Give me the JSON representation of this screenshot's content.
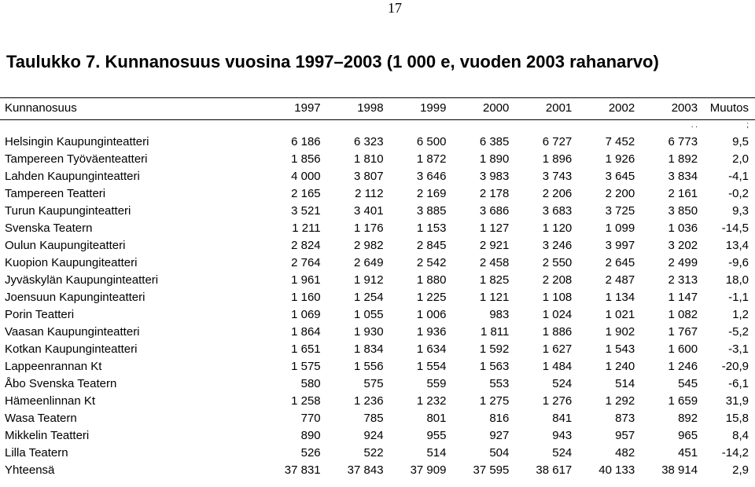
{
  "page_number": "17",
  "title": "Taulukko 7. Kunnanosuus vuosina 1997–2003 (1 000 e, vuoden 2003 rahanarvo)",
  "table": {
    "headers": [
      "Kunnanosuus",
      "1997",
      "1998",
      "1999",
      "2000",
      "2001",
      "2002",
      "2003",
      "Muutos"
    ],
    "dots_row": [
      "",
      "",
      "",
      "",
      "",
      "",
      "",
      ". .",
      ";"
    ],
    "rows": [
      [
        "Helsingin Kaupunginteatteri",
        "6 186",
        "6 323",
        "6 500",
        "6 385",
        "6 727",
        "7 452",
        "6 773",
        "9,5"
      ],
      [
        "Tampereen Työväenteatteri",
        "1 856",
        "1 810",
        "1 872",
        "1 890",
        "1 896",
        "1 926",
        "1 892",
        "2,0"
      ],
      [
        "Lahden Kaupunginteatteri",
        "4 000",
        "3 807",
        "3 646",
        "3 983",
        "3 743",
        "3 645",
        "3 834",
        "-4,1"
      ],
      [
        "Tampereen Teatteri",
        "2 165",
        "2 112",
        "2 169",
        "2 178",
        "2 206",
        "2 200",
        "2 161",
        "-0,2"
      ],
      [
        "Turun Kaupunginteatteri",
        "3 521",
        "3 401",
        "3 885",
        "3 686",
        "3 683",
        "3 725",
        "3 850",
        "9,3"
      ],
      [
        "Svenska Teatern",
        "1 211",
        "1 176",
        "1 153",
        "1 127",
        "1 120",
        "1 099",
        "1 036",
        "-14,5"
      ],
      [
        "Oulun Kaupungiteatteri",
        "2 824",
        "2 982",
        "2 845",
        "2 921",
        "3 246",
        "3 997",
        "3 202",
        "13,4"
      ],
      [
        "Kuopion Kaupungiteatteri",
        "2 764",
        "2 649",
        "2 542",
        "2 458",
        "2 550",
        "2 645",
        "2 499",
        "-9,6"
      ],
      [
        "Jyväskylän Kaupunginteatteri",
        "1 961",
        "1 912",
        "1 880",
        "1 825",
        "2 208",
        "2 487",
        "2 313",
        "18,0"
      ],
      [
        "Joensuun Kapunginteatteri",
        "1 160",
        "1 254",
        "1 225",
        "1 121",
        "1 108",
        "1 134",
        "1 147",
        "-1,1"
      ],
      [
        "Porin Teatteri",
        "1 069",
        "1 055",
        "1 006",
        "983",
        "1 024",
        "1 021",
        "1 082",
        "1,2"
      ],
      [
        "Vaasan Kaupunginteatteri",
        "1 864",
        "1 930",
        "1 936",
        "1 811",
        "1 886",
        "1 902",
        "1 767",
        "-5,2"
      ],
      [
        "Kotkan Kaupunginteatteri",
        "1 651",
        "1 834",
        "1 634",
        "1 592",
        "1 627",
        "1 543",
        "1 600",
        "-3,1"
      ],
      [
        "Lappeenrannan Kt",
        "1 575",
        "1 556",
        "1 554",
        "1 563",
        "1 484",
        "1 240",
        "1 246",
        "-20,9"
      ],
      [
        "Åbo Svenska Teatern",
        "580",
        "575",
        "559",
        "553",
        "524",
        "514",
        "545",
        "-6,1"
      ],
      [
        "Hämeenlinnan Kt",
        "1 258",
        "1 236",
        "1 232",
        "1 275",
        "1 276",
        "1 292",
        "1 659",
        "31,9"
      ],
      [
        "Wasa Teatern",
        "770",
        "785",
        "801",
        "816",
        "841",
        "873",
        "892",
        "15,8"
      ],
      [
        "Mikkelin Teatteri",
        "890",
        "924",
        "955",
        "927",
        "943",
        "957",
        "965",
        "8,4"
      ],
      [
        "Lilla Teatern",
        "526",
        "522",
        "514",
        "504",
        "524",
        "482",
        "451",
        "-14,2"
      ],
      [
        "Yhteensä",
        "37 831",
        "37 843",
        "37 909",
        "37 595",
        "38 617",
        "40 133",
        "38 914",
        "2,9"
      ]
    ]
  }
}
